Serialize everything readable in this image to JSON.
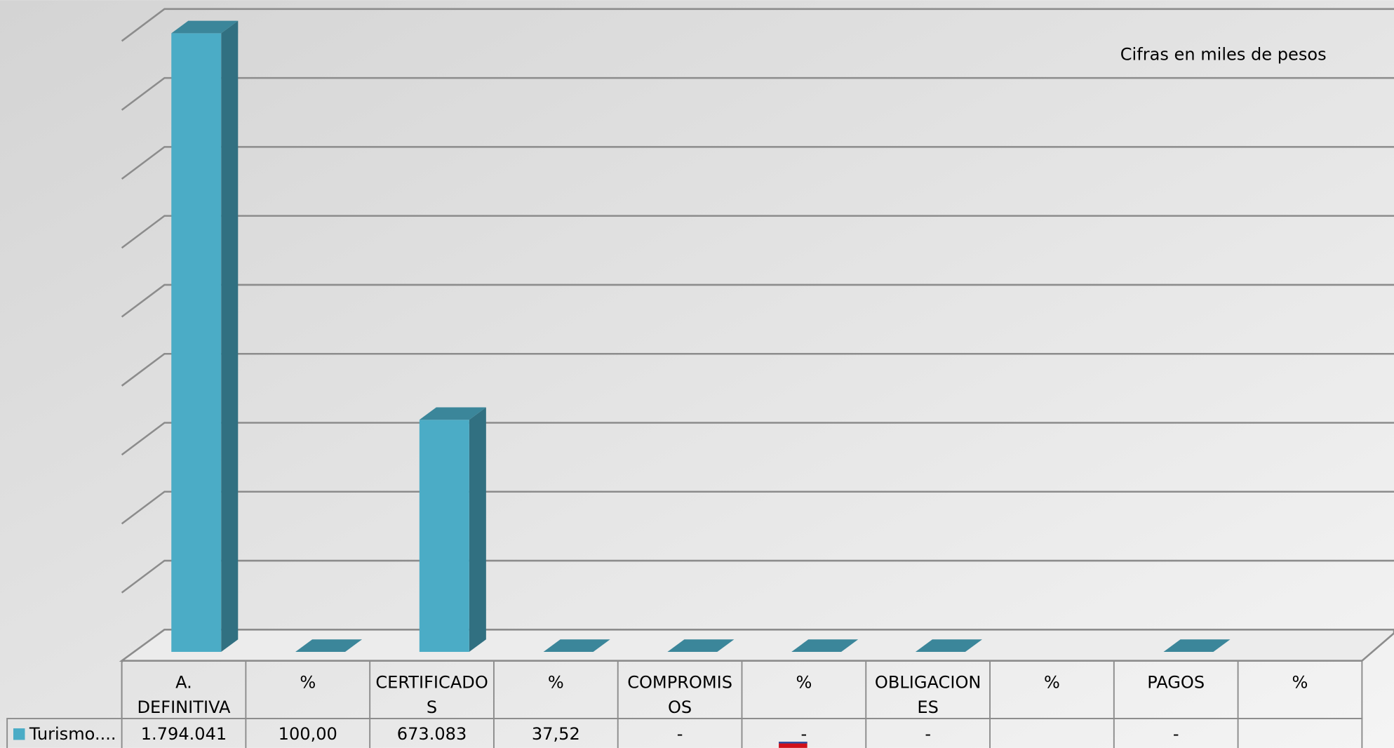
{
  "chart_data": {
    "type": "bar3d",
    "annotation": "Cifras en miles de pesos",
    "categories": [
      "A. DEFINITIVA",
      "%",
      "CERTIFICADOS",
      "%",
      "COMPROMISOS",
      "%",
      "OBLIGACIONES",
      "%",
      "PAGOS",
      "%"
    ],
    "series": [
      {
        "name": "Turismo....",
        "color": "#4bacc6",
        "values": [
          1794041,
          100,
          673083,
          37.52,
          0,
          0,
          0,
          null,
          0,
          null
        ],
        "value_labels": [
          "1.794.041",
          "100,00",
          "673.083",
          "37,52",
          "-",
          "-",
          "-",
          null,
          "-",
          null
        ]
      }
    ],
    "ylim": [
      0,
      1800000
    ],
    "yticks": [
      0,
      200000,
      400000,
      600000,
      800000,
      1000000,
      1200000,
      1400000,
      1600000,
      1800000
    ],
    "grid": true,
    "legend": "table"
  }
}
